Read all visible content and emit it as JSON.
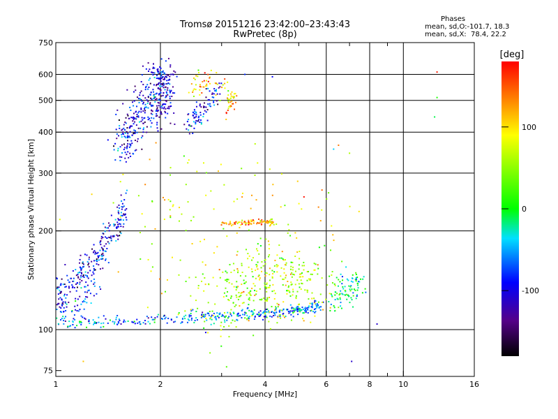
{
  "chart_data": {
    "type": "scatter",
    "title": "Tromsø 20151216 23:42:00–23:43:43",
    "subtitle": "RwPretec (8p)",
    "xlabel": "Frequency [MHz]",
    "ylabel": "Stationary phase Virtual Height [km]",
    "x_scale": "log",
    "y_scale": "log",
    "xlim": [
      1,
      16
    ],
    "ylim": [
      72,
      750
    ],
    "x_ticks": [
      1,
      2,
      4,
      6,
      8,
      10,
      16
    ],
    "x_tick_labels": [
      "1",
      "2",
      "4",
      "6",
      "8",
      "10",
      "16"
    ],
    "x_grid": [
      2,
      4,
      6,
      8,
      10
    ],
    "x_minor_ticks": [
      3,
      5,
      7,
      9
    ],
    "y_ticks": [
      75,
      100,
      200,
      300,
      400,
      500,
      600,
      750
    ],
    "y_tick_labels": [
      "75",
      "100",
      "200",
      "300",
      "400",
      "500",
      "600",
      "750"
    ],
    "y_grid": [
      100,
      200,
      300,
      400,
      500,
      600
    ],
    "grid": true,
    "stats": {
      "heading": "Phases",
      "o_line": "mean, sd,O:-101.7, 18.3",
      "x_line": "mean, sd,X:  78.4, 22.2"
    },
    "colorbar": {
      "label": "[deg]",
      "range": [
        -180,
        180
      ],
      "ticks": [
        100,
        0,
        -100
      ],
      "tick_labels": [
        "100",
        "0",
        "-100"
      ],
      "colormap": "rainbow (black → purple → blue → cyan → green → yellow → orange → red)"
    },
    "clusters": [
      {
        "name": "low-frequency O trace",
        "phase": -100,
        "path": [
          [
            1.0,
            130
          ],
          [
            1.05,
            125
          ],
          [
            1.1,
            140
          ],
          [
            1.15,
            145
          ],
          [
            1.2,
            150
          ],
          [
            1.25,
            155
          ],
          [
            1.3,
            165
          ],
          [
            1.35,
            175
          ],
          [
            1.4,
            185
          ],
          [
            1.45,
            195
          ],
          [
            1.5,
            205
          ],
          [
            1.55,
            225
          ],
          [
            1.58,
            245
          ]
        ],
        "spread_x": 0.02,
        "spread_y": 0.05,
        "n": 260
      },
      {
        "name": "low band near 1.2 MHz",
        "phase": -80,
        "path": [
          [
            1.0,
            112
          ],
          [
            1.1,
            118
          ],
          [
            1.2,
            122
          ],
          [
            1.3,
            140
          ]
        ],
        "spread_x": 0.03,
        "spread_y": 0.05,
        "n": 60
      },
      {
        "name": "F2 O trace",
        "phase": -100,
        "path": [
          [
            1.55,
            380
          ],
          [
            1.6,
            400
          ],
          [
            1.7,
            430
          ],
          [
            1.8,
            460
          ],
          [
            1.9,
            490
          ],
          [
            2.0,
            510
          ],
          [
            2.05,
            540
          ],
          [
            2.1,
            560
          ]
        ],
        "spread_x": 0.04,
        "spread_y": 0.1,
        "n": 360
      },
      {
        "name": "F2 upper limb",
        "phase": -95,
        "path": [
          [
            1.8,
            600
          ],
          [
            1.9,
            620
          ],
          [
            2.0,
            610
          ],
          [
            2.05,
            580
          ],
          [
            2.1,
            540
          ]
        ],
        "spread_x": 0.02,
        "spread_y": 0.04,
        "n": 60
      },
      {
        "name": "F2 near 2.5 MHz",
        "phase": -90,
        "path": [
          [
            2.4,
            420
          ],
          [
            2.5,
            430
          ],
          [
            2.6,
            450
          ],
          [
            2.7,
            480
          ],
          [
            2.8,
            510
          ],
          [
            2.9,
            540
          ]
        ],
        "spread_x": 0.02,
        "spread_y": 0.05,
        "n": 90
      },
      {
        "name": "F2 X trace",
        "phase": 100,
        "path": [
          [
            2.5,
            530
          ],
          [
            2.6,
            560
          ],
          [
            2.75,
            590
          ],
          [
            3.0,
            560
          ],
          [
            3.2,
            520
          ]
        ],
        "spread_x": 0.03,
        "spread_y": 0.05,
        "n": 50
      },
      {
        "name": "bottom trace",
        "phase": -60,
        "path": [
          [
            1.0,
            105
          ],
          [
            1.2,
            105
          ],
          [
            1.5,
            106
          ],
          [
            1.8,
            107
          ],
          [
            2.2,
            108
          ],
          [
            2.6,
            109
          ],
          [
            3.0,
            110
          ],
          [
            3.4,
            111
          ],
          [
            3.8,
            112
          ],
          [
            4.2,
            113
          ],
          [
            4.6,
            114
          ],
          [
            5.0,
            115
          ],
          [
            5.5,
            117
          ],
          [
            5.8,
            118
          ]
        ],
        "spread_x": 0.01,
        "spread_y": 0.02,
        "n": 360
      },
      {
        "name": "mid-height scatter 3–6 MHz",
        "phase": 60,
        "path": [
          [
            2.8,
            120
          ],
          [
            3.5,
            135
          ],
          [
            4.0,
            140
          ],
          [
            4.8,
            135
          ],
          [
            5.8,
            140
          ]
        ],
        "spread_x": 0.12,
        "spread_y": 0.13,
        "n": 360
      },
      {
        "name": "horizontal echo near 210 km",
        "phase": 120,
        "path": [
          [
            3.0,
            210
          ],
          [
            3.5,
            212
          ],
          [
            4.0,
            213
          ],
          [
            4.2,
            212
          ]
        ],
        "spread_x": 0.01,
        "spread_y": 0.01,
        "n": 90
      },
      {
        "name": "cluster near 3.2 MHz",
        "phase": 110,
        "path": [
          [
            3.1,
            470
          ],
          [
            3.2,
            500
          ],
          [
            3.25,
            520
          ]
        ],
        "spread_x": 0.01,
        "spread_y": 0.04,
        "n": 30
      },
      {
        "name": "6.5–7.5 MHz echoes",
        "phase": -20,
        "path": [
          [
            6.5,
            125
          ],
          [
            6.8,
            130
          ],
          [
            7.1,
            135
          ],
          [
            7.4,
            140
          ]
        ],
        "spread_x": 0.03,
        "spread_y": 0.06,
        "n": 90
      },
      {
        "name": "sparse points",
        "phase": 80,
        "path": [
          [
            1.5,
            170
          ],
          [
            2.3,
            220
          ],
          [
            3.0,
            300
          ],
          [
            4.5,
            180
          ],
          [
            5.5,
            250
          ],
          [
            2.0,
            150
          ]
        ],
        "spread_x": 0.25,
        "spread_y": 0.25,
        "n": 140
      }
    ],
    "isolated_points": [
      {
        "x": 12.5,
        "y": 610,
        "phase": 170
      },
      {
        "x": 12.5,
        "y": 510,
        "phase": 10
      },
      {
        "x": 12.3,
        "y": 445,
        "phase": -10
      },
      {
        "x": 8.4,
        "y": 104,
        "phase": -110
      },
      {
        "x": 7.1,
        "y": 80,
        "phase": -110
      },
      {
        "x": 3.1,
        "y": 77,
        "phase": 30
      },
      {
        "x": 2.7,
        "y": 98,
        "phase": -100
      },
      {
        "x": 3.7,
        "y": 96,
        "phase": 30
      },
      {
        "x": 1.2,
        "y": 80,
        "phase": 110
      },
      {
        "x": 4.2,
        "y": 590,
        "phase": -90
      },
      {
        "x": 3.5,
        "y": 600,
        "phase": -80
      },
      {
        "x": 6.3,
        "y": 355,
        "phase": -40
      },
      {
        "x": 7.0,
        "y": 345,
        "phase": 60
      }
    ],
    "legend": "none"
  }
}
